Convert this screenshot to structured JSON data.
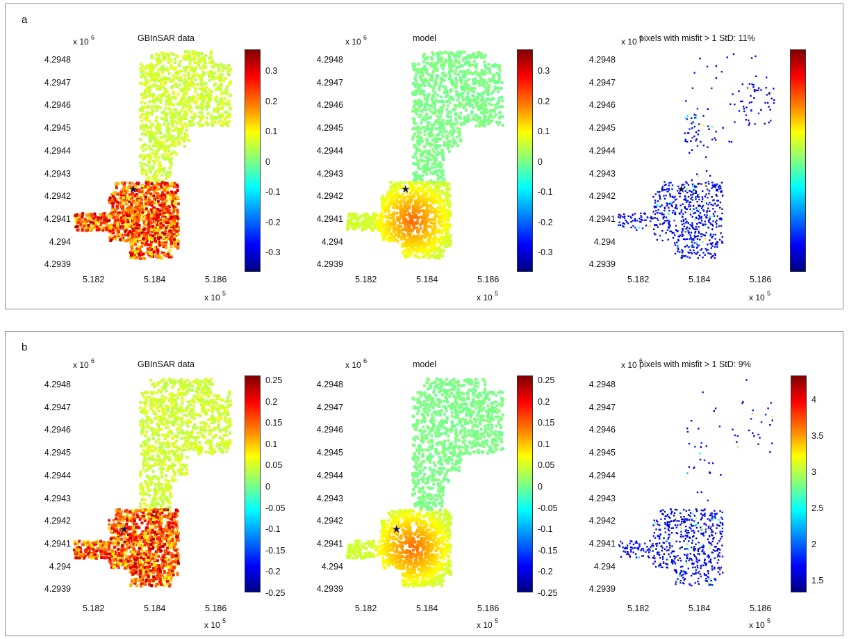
{
  "panels": [
    {
      "label": "a",
      "plots": [
        {
          "title": "GBInSAR data",
          "kind": "data",
          "cbar_ticks": [
            "0.3",
            "0.2",
            "0.1",
            "0",
            "-0.1",
            "-0.2",
            "-0.3"
          ]
        },
        {
          "title": "model",
          "kind": "model",
          "cbar_ticks": [
            "0.3",
            "0.2",
            "0.1",
            "0",
            "-0.1",
            "-0.2",
            "-0.3"
          ]
        },
        {
          "title": "pixels with misfit > 1 StD: 11%",
          "kind": "misfit",
          "cbar_ticks": []
        }
      ]
    },
    {
      "label": "b",
      "plots": [
        {
          "title": "GBInSAR data",
          "kind": "data",
          "cbar_ticks": [
            "0.25",
            "0.2",
            "0.15",
            "0.1",
            "0.05",
            "0",
            "-0.05",
            "-0.1",
            "-0.15",
            "-0.2",
            "-0.25"
          ]
        },
        {
          "title": "model",
          "kind": "model",
          "cbar_ticks": [
            "0.25",
            "0.2",
            "0.15",
            "0.1",
            "0.05",
            "0",
            "-0.05",
            "-0.1",
            "-0.15",
            "-0.2",
            "-0.25"
          ]
        },
        {
          "title": "pixels with misfit > 1 StD: 9%",
          "kind": "misfit",
          "cbar_ticks": [
            "4",
            "3.5",
            "3",
            "2.5",
            "2",
            "1.5"
          ]
        }
      ]
    }
  ],
  "y_ticks": [
    "4.2948",
    "4.2947",
    "4.2946",
    "4.2945",
    "4.2944",
    "4.2943",
    "4.2942",
    "4.2941",
    "4.294",
    "4.2939"
  ],
  "x_ticks": [
    "5.182",
    "5.184",
    "5.186"
  ],
  "y_exp_prefix": "x 10",
  "y_exp_power": "6",
  "x_exp_prefix": "x 10",
  "x_exp_power": "5",
  "star_icon": "★",
  "colors": {
    "star": "#101060",
    "misfit_points": "#0a0aa0",
    "frame": "#8a8a8a"
  },
  "chart_data": [
    {
      "type": "heatmap",
      "title": "GBInSAR data",
      "panel": "a",
      "xlabel_multiplier": "x 10^5",
      "ylabel_multiplier": "x 10^6",
      "xlim": [
        5.181,
        5.1875
      ],
      "ylim": [
        4.2939,
        4.2948
      ],
      "colorbar_range": [
        -0.35,
        0.35
      ]
    },
    {
      "type": "heatmap",
      "title": "model",
      "panel": "a",
      "xlim": [
        5.181,
        5.1875
      ],
      "ylim": [
        4.2939,
        4.2948
      ],
      "colorbar_range": [
        -0.35,
        0.35
      ]
    },
    {
      "type": "scatter",
      "title": "pixels with misfit > 1 StD: 11%",
      "panel": "a",
      "xlim": [
        5.181,
        5.1875
      ],
      "ylim": [
        4.2939,
        4.2948
      ]
    },
    {
      "type": "heatmap",
      "title": "GBInSAR data",
      "panel": "b",
      "xlim": [
        5.181,
        5.1875
      ],
      "ylim": [
        4.2939,
        4.2948
      ],
      "colorbar_range": [
        -0.25,
        0.25
      ]
    },
    {
      "type": "heatmap",
      "title": "model",
      "panel": "b",
      "xlim": [
        5.181,
        5.1875
      ],
      "ylim": [
        4.2939,
        4.2948
      ],
      "colorbar_range": [
        -0.25,
        0.25
      ]
    },
    {
      "type": "scatter",
      "title": "pixels with misfit > 1 StD: 9%",
      "panel": "b",
      "xlim": [
        5.181,
        5.1875
      ],
      "ylim": [
        4.2939,
        4.2948
      ],
      "colorbar_range": [
        1,
        4.5
      ]
    }
  ]
}
